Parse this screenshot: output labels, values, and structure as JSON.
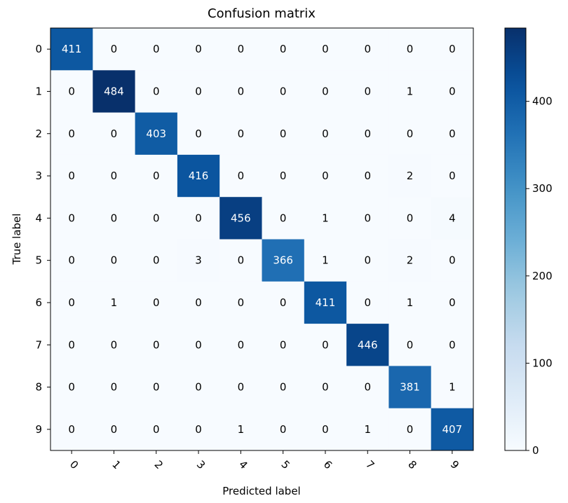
{
  "chart_data": {
    "type": "heatmap",
    "title": "Confusion matrix",
    "xlabel": "Predicted label",
    "ylabel": "True label",
    "x_categories": [
      "0",
      "1",
      "2",
      "3",
      "4",
      "5",
      "6",
      "7",
      "8",
      "9"
    ],
    "y_categories": [
      "0",
      "1",
      "2",
      "3",
      "4",
      "5",
      "6",
      "7",
      "8",
      "9"
    ],
    "matrix": [
      [
        411,
        0,
        0,
        0,
        0,
        0,
        0,
        0,
        0,
        0
      ],
      [
        0,
        484,
        0,
        0,
        0,
        0,
        0,
        0,
        1,
        0
      ],
      [
        0,
        0,
        403,
        0,
        0,
        0,
        0,
        0,
        0,
        0
      ],
      [
        0,
        0,
        0,
        416,
        0,
        0,
        0,
        0,
        2,
        0
      ],
      [
        0,
        0,
        0,
        0,
        456,
        0,
        1,
        0,
        0,
        4
      ],
      [
        0,
        0,
        0,
        3,
        0,
        366,
        1,
        0,
        2,
        0
      ],
      [
        0,
        1,
        0,
        0,
        0,
        0,
        411,
        0,
        1,
        0
      ],
      [
        0,
        0,
        0,
        0,
        0,
        0,
        0,
        446,
        0,
        0
      ],
      [
        0,
        0,
        0,
        0,
        0,
        0,
        0,
        0,
        381,
        1
      ],
      [
        0,
        0,
        0,
        0,
        1,
        0,
        0,
        1,
        0,
        407
      ]
    ],
    "colormap": "Blues",
    "colorbar": {
      "range": [
        0,
        484
      ],
      "ticks": [
        0,
        100,
        200,
        300,
        400
      ]
    },
    "grid": false
  }
}
